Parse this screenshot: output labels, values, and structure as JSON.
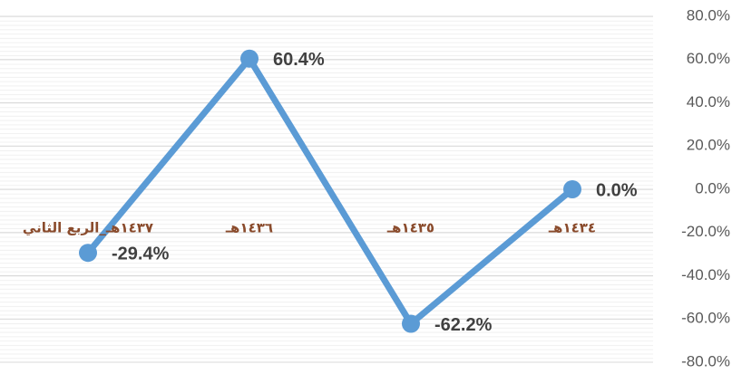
{
  "chart_data": {
    "type": "line",
    "categories": [
      "١٤٣٧هـ_الربع الثاني",
      "١٤٣٦هـ",
      "١٤٣٥هـ",
      "١٤٣٤هـ"
    ],
    "values": [
      -29.4,
      60.4,
      -62.2,
      0.0
    ],
    "value_labels": [
      "-29.4%",
      "60.4%",
      "-62.2%",
      "0.0%"
    ],
    "color": "#5b9bd5",
    "ylim": [
      -80,
      80
    ],
    "yticks": [
      {
        "value": 80,
        "label": "80.0%"
      },
      {
        "value": 60,
        "label": "60.0%"
      },
      {
        "value": 40,
        "label": "40.0%"
      },
      {
        "value": 20,
        "label": "20.0%"
      },
      {
        "value": 0,
        "label": "0.0%"
      },
      {
        "value": -20,
        "label": "-20.0%"
      },
      {
        "value": -40,
        "label": "-40.0%"
      },
      {
        "value": -60,
        "label": "-60.0%"
      },
      {
        "value": -80,
        "label": "-80.0%"
      }
    ],
    "grid": true
  }
}
